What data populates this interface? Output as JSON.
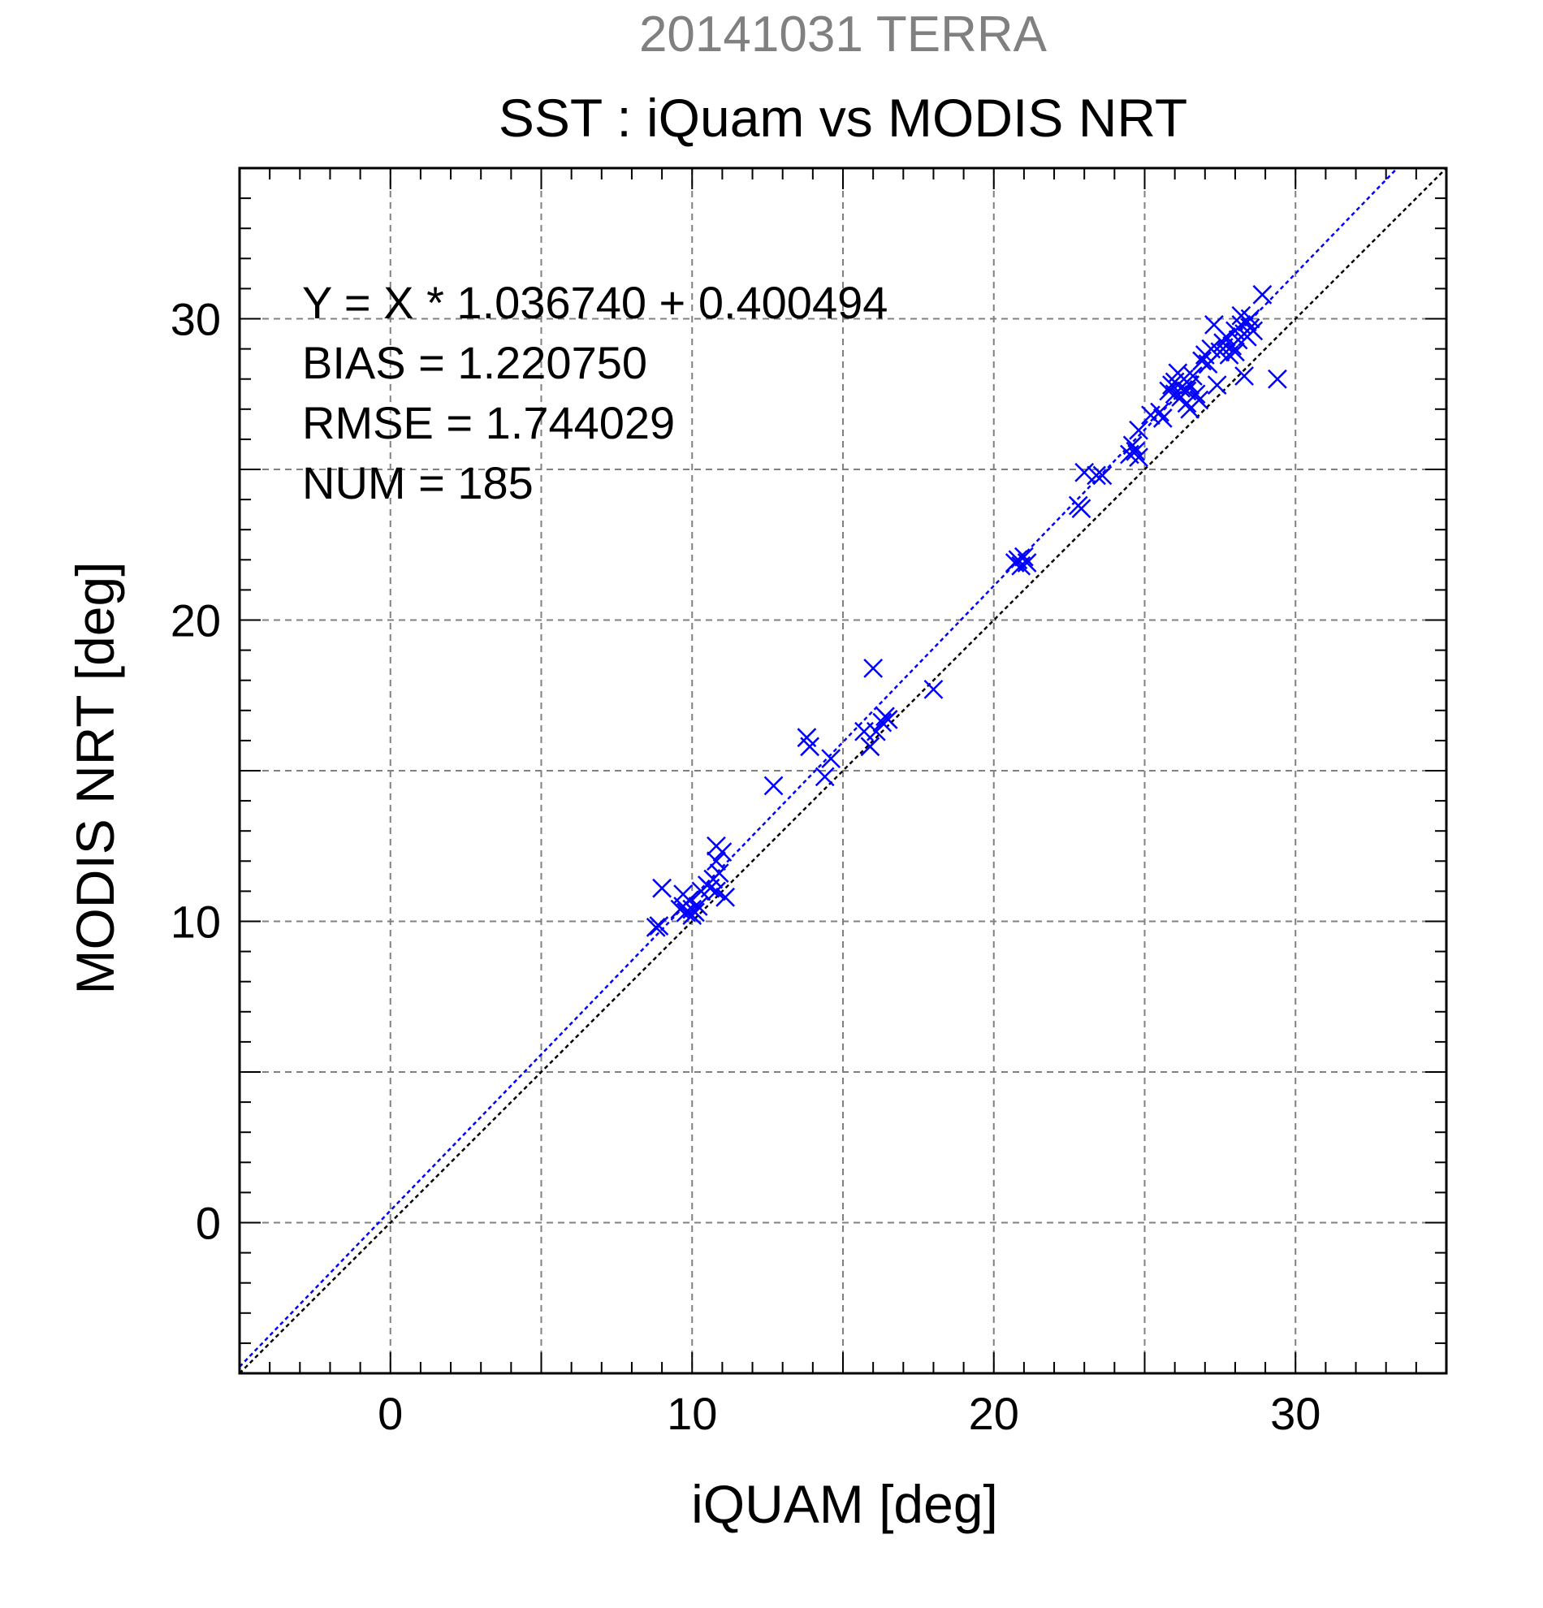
{
  "header": {
    "date_title": "20141031 TERRA",
    "title": "SST : iQuam vs MODIS NRT"
  },
  "stats": {
    "line1": "Y = X * 1.036740 + 0.400494",
    "line2": "BIAS = 1.220750",
    "line3": "RMSE = 1.744029",
    "line4": "NUM = 185"
  },
  "colors": {
    "date_title": "#808080",
    "points": "#0000ff",
    "fit_line": "#0000ff",
    "identity_line": "#000000",
    "grid": "#808080"
  },
  "chart_data": {
    "type": "scatter",
    "title": "SST : iQuam vs MODIS NRT",
    "subtitle": "20141031 TERRA",
    "xlabel": "iQUAM [deg]",
    "ylabel": "MODIS NRT [deg]",
    "xlim": [
      -5,
      35
    ],
    "ylim": [
      -5,
      35
    ],
    "major_ticks": [
      0,
      10,
      20,
      30
    ],
    "grid_values": [
      0,
      5,
      10,
      15,
      20,
      25,
      30
    ],
    "minor_tick_step": 1,
    "grid": true,
    "marker": "x",
    "fit": {
      "slope": 1.03674,
      "intercept": 0.400494
    },
    "identity_line": true,
    "points": [
      [
        8.8,
        9.8
      ],
      [
        8.9,
        9.85
      ],
      [
        9.0,
        11.1
      ],
      [
        9.6,
        10.4
      ],
      [
        9.7,
        10.5
      ],
      [
        9.7,
        10.9
      ],
      [
        9.8,
        10.3
      ],
      [
        9.9,
        10.7
      ],
      [
        10.0,
        10.2
      ],
      [
        10.0,
        10.4
      ],
      [
        10.1,
        10.3
      ],
      [
        10.2,
        10.5
      ],
      [
        10.3,
        11.0
      ],
      [
        10.5,
        11.2
      ],
      [
        10.6,
        11.1
      ],
      [
        10.7,
        11.4
      ],
      [
        10.8,
        11.0
      ],
      [
        10.8,
        12.0
      ],
      [
        10.8,
        12.5
      ],
      [
        10.9,
        11.6
      ],
      [
        11.0,
        12.3
      ],
      [
        11.1,
        10.8
      ],
      [
        12.7,
        14.5
      ],
      [
        13.8,
        16.1
      ],
      [
        13.9,
        15.8
      ],
      [
        14.4,
        14.8
      ],
      [
        14.6,
        15.4
      ],
      [
        15.7,
        16.3
      ],
      [
        15.9,
        15.8
      ],
      [
        16.0,
        18.4
      ],
      [
        16.1,
        16.3
      ],
      [
        16.3,
        16.6
      ],
      [
        16.4,
        16.8
      ],
      [
        16.5,
        16.7
      ],
      [
        18.0,
        17.7
      ],
      [
        20.7,
        21.9
      ],
      [
        20.8,
        22.0
      ],
      [
        20.9,
        21.8
      ],
      [
        21.0,
        22.1
      ],
      [
        21.1,
        21.9
      ],
      [
        22.8,
        23.8
      ],
      [
        22.9,
        23.7
      ],
      [
        23.0,
        24.9
      ],
      [
        23.4,
        24.8
      ],
      [
        23.6,
        24.8
      ],
      [
        24.5,
        25.5
      ],
      [
        24.6,
        25.8
      ],
      [
        24.7,
        25.6
      ],
      [
        24.8,
        25.4
      ],
      [
        24.8,
        26.3
      ],
      [
        25.2,
        26.8
      ],
      [
        25.5,
        26.9
      ],
      [
        25.6,
        26.7
      ],
      [
        25.8,
        27.6
      ],
      [
        25.9,
        27.8
      ],
      [
        26.0,
        27.5
      ],
      [
        26.0,
        27.9
      ],
      [
        26.1,
        28.2
      ],
      [
        26.2,
        27.4
      ],
      [
        26.2,
        27.7
      ],
      [
        26.3,
        28.0
      ],
      [
        26.4,
        27.6
      ],
      [
        26.4,
        27.2
      ],
      [
        26.5,
        27.8
      ],
      [
        26.5,
        27.0
      ],
      [
        26.6,
        28.1
      ],
      [
        26.7,
        27.5
      ],
      [
        26.8,
        27.3
      ],
      [
        26.9,
        28.6
      ],
      [
        27.0,
        28.8
      ],
      [
        27.1,
        28.5
      ],
      [
        27.2,
        29.0
      ],
      [
        27.3,
        29.8
      ],
      [
        27.4,
        27.8
      ],
      [
        27.5,
        28.9
      ],
      [
        27.6,
        29.2
      ],
      [
        27.7,
        29.4
      ],
      [
        27.8,
        28.8
      ],
      [
        27.9,
        29.1
      ],
      [
        28.0,
        29.6
      ],
      [
        28.0,
        28.9
      ],
      [
        28.1,
        29.3
      ],
      [
        28.2,
        30.1
      ],
      [
        28.2,
        29.8
      ],
      [
        28.3,
        29.5
      ],
      [
        28.3,
        28.1
      ],
      [
        28.4,
        29.9
      ],
      [
        28.4,
        29.4
      ],
      [
        28.5,
        29.7
      ],
      [
        28.5,
        30.0
      ],
      [
        28.6,
        29.6
      ],
      [
        28.9,
        30.8
      ],
      [
        29.4,
        28.0
      ]
    ]
  }
}
